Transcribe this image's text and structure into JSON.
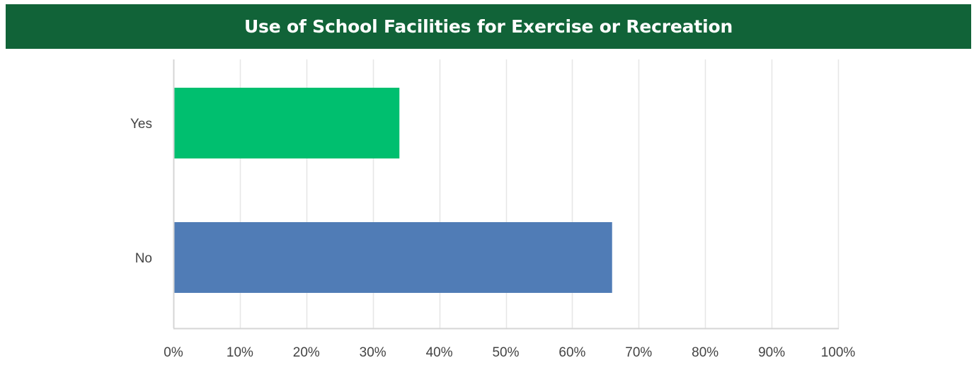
{
  "chart_data": {
    "type": "bar",
    "orientation": "horizontal",
    "title": "Use of School Facilities for Exercise or Recreation",
    "categories": [
      "Yes",
      "No"
    ],
    "values": [
      34,
      66
    ],
    "colors": [
      "#00BF6F",
      "#507CB6"
    ],
    "xlim": [
      0,
      100
    ],
    "x_ticks": [
      "0%",
      "10%",
      "20%",
      "30%",
      "40%",
      "50%",
      "60%",
      "70%",
      "80%",
      "90%",
      "100%"
    ],
    "grid": true
  },
  "colors": {
    "header_background": "#116338",
    "header_text": "#FFFFFF"
  }
}
